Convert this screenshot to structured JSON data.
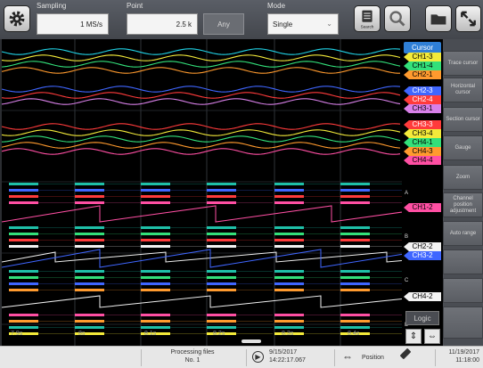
{
  "toolbar": {
    "sampling_label": "Sampling",
    "sampling_value": "1 MS/s",
    "point_label": "Point",
    "point_value": "2.5 k",
    "any_label": "Any",
    "mode_label": "Mode",
    "mode_value": "Single",
    "search_label": "Search"
  },
  "colors": {
    "green": "#33e07a",
    "orange": "#ff9a2e",
    "pink": "#ff4fa3",
    "teal": "#1fc0a8",
    "blue": "#3f66ff",
    "red": "#ff3b3b",
    "violet": "#d880e8",
    "yellow": "#f3ea3a",
    "cyan": "#21d3e6",
    "white": "#f2f2f2"
  },
  "cursor_tag": "Cursor",
  "channel_tags": [
    {
      "label": "CH1-3",
      "color": "#f3ea3a",
      "text": "#000"
    },
    {
      "label": "CH1-4",
      "color": "#33e07a",
      "text": "#000"
    },
    {
      "label": "CH2-1",
      "color": "#ff9a2e",
      "text": "#000"
    },
    {
      "label": "CH2-3",
      "color": "#3f66ff",
      "text": "#fff"
    },
    {
      "label": "CH2-4",
      "color": "#ff3b3b",
      "text": "#fff"
    },
    {
      "label": "CH3-1",
      "color": "#d880e8",
      "text": "#000"
    },
    {
      "label": "CH3-3",
      "color": "#ff3b3b",
      "text": "#fff"
    },
    {
      "label": "CH3-4",
      "color": "#f3ea3a",
      "text": "#000"
    },
    {
      "label": "CH4-1",
      "color": "#33e07a",
      "text": "#000"
    },
    {
      "label": "CH4-3",
      "color": "#ff9a2e",
      "text": "#000"
    },
    {
      "label": "CH4-4",
      "color": "#ff4fa3",
      "text": "#000"
    },
    {
      "label": "CH1-2",
      "color": "#ff4fa3",
      "text": "#000"
    },
    {
      "label": "CH2-2",
      "color": "#f2f2f2",
      "text": "#000"
    },
    {
      "label": "CH3-2",
      "color": "#3f66ff",
      "text": "#fff"
    },
    {
      "label": "CH4-2",
      "color": "#f2f2f2",
      "text": "#000"
    }
  ],
  "logic_groups": [
    "A",
    "B",
    "C",
    "D"
  ],
  "logic_label": "Logic",
  "time_ticks": [
    "7.9s",
    "8s",
    "8.1s",
    "8.2s",
    "8.3s",
    "8.4s"
  ],
  "side_buttons": [
    "Trace cursor",
    "Horizontal cursor",
    "Section cursor",
    "Gauge",
    "Zoom",
    "Channel position adjustment",
    "Auto range"
  ],
  "status": {
    "processing": "Processing files",
    "file_no": "No. 1",
    "trigger_date": "9/15/2017",
    "trigger_time": "14:22:17.067",
    "position_label": "Position",
    "clock_date": "11/19/2017",
    "clock_time": "11:18:00"
  }
}
